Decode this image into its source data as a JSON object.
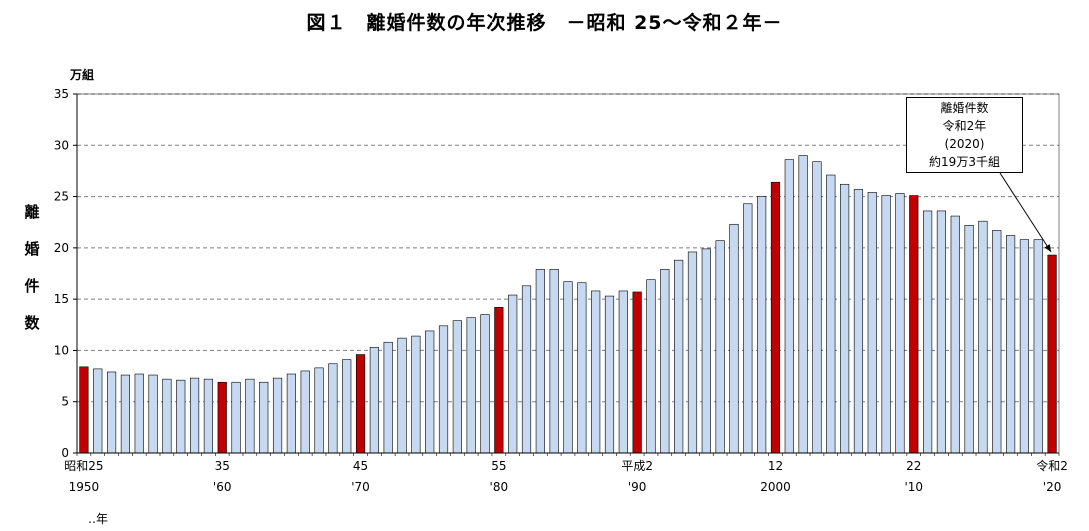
{
  "title": "図１　離婚件数の年次推移　－昭和 25～令和２年－",
  "chart_data": {
    "type": "bar",
    "unit_label": "万組",
    "ylabel": [
      "離",
      "婚",
      "件",
      "数"
    ],
    "ylim": [
      0,
      35
    ],
    "yticks": [
      0,
      5,
      10,
      15,
      20,
      25,
      30,
      35
    ],
    "grid": true,
    "x_unit_note": "‥年",
    "xtick_labels": [
      {
        "index": 0,
        "lines": [
          "昭和25",
          "1950"
        ]
      },
      {
        "index": 10,
        "lines": [
          "35",
          "'60"
        ]
      },
      {
        "index": 20,
        "lines": [
          "45",
          "'70"
        ]
      },
      {
        "index": 30,
        "lines": [
          "55",
          "'80"
        ]
      },
      {
        "index": 40,
        "lines": [
          "平成2",
          "'90"
        ]
      },
      {
        "index": 50,
        "lines": [
          "12",
          "2000"
        ]
      },
      {
        "index": 60,
        "lines": [
          "22",
          "'10"
        ]
      },
      {
        "index": 70,
        "lines": [
          "令和2",
          "'20"
        ]
      }
    ],
    "highlight_indices": [
      0,
      10,
      20,
      30,
      40,
      50,
      60,
      70
    ],
    "colors": {
      "normal": "#c6d9f1",
      "highlight": "#c00000",
      "edge": "#000000",
      "grid": "#808080"
    },
    "values": [
      8.4,
      8.2,
      7.9,
      7.6,
      7.7,
      7.6,
      7.2,
      7.1,
      7.3,
      7.2,
      6.9,
      6.9,
      7.2,
      6.9,
      7.3,
      7.7,
      8.0,
      8.3,
      8.7,
      9.1,
      9.6,
      10.3,
      10.8,
      11.2,
      11.4,
      11.9,
      12.4,
      12.9,
      13.2,
      13.5,
      14.2,
      15.4,
      16.3,
      17.9,
      17.9,
      16.7,
      16.6,
      15.8,
      15.3,
      15.8,
      15.7,
      16.9,
      17.9,
      18.8,
      19.6,
      19.9,
      20.7,
      22.3,
      24.3,
      25.0,
      26.4,
      28.6,
      29.0,
      28.4,
      27.1,
      26.2,
      25.7,
      25.4,
      25.1,
      25.3,
      25.1,
      23.6,
      23.6,
      23.1,
      22.2,
      22.6,
      21.7,
      21.2,
      20.8,
      20.8,
      19.3
    ]
  },
  "annotation": {
    "lines": [
      "離婚件数",
      "令和2年",
      "(2020)",
      "約19万3千組"
    ]
  }
}
